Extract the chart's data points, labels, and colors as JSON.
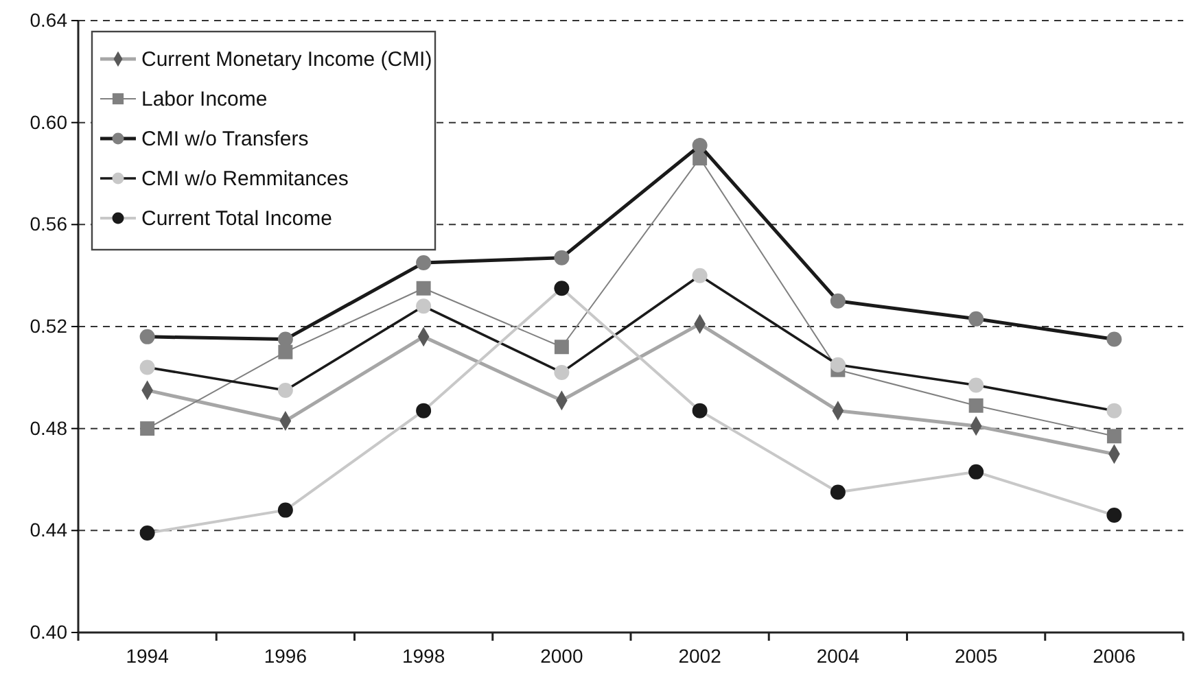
{
  "chart_data": {
    "type": "line",
    "categories": [
      "1994",
      "1996",
      "1998",
      "2000",
      "2002",
      "2004",
      "2005",
      "2006"
    ],
    "series": [
      {
        "name": "Current Monetary Income (CMI)",
        "color": "#a6a6a6",
        "colors": [
          "#595959",
          "#595959",
          "#595959",
          "#595959",
          "#595959",
          "#595959",
          "#595959",
          "#595959"
        ],
        "marker": "diamond",
        "values": [
          0.495,
          0.483,
          0.516,
          0.491,
          0.521,
          0.487,
          0.481,
          0.47
        ]
      },
      {
        "name": "Labor Income",
        "color": "#808080",
        "colors": [
          "#808080",
          "#808080",
          "#808080",
          "#808080",
          "#808080",
          "#808080",
          "#808080",
          "#808080"
        ],
        "marker": "square",
        "values": [
          0.48,
          0.51,
          0.535,
          0.512,
          0.586,
          0.503,
          0.489,
          0.477
        ]
      },
      {
        "name": "CMI w/o Transfers",
        "color": "#1a1a1a",
        "colors": [
          "#808080",
          "#808080",
          "#808080",
          "#808080",
          "#808080",
          "#808080",
          "#808080",
          "#808080"
        ],
        "marker": "circle",
        "values": [
          0.516,
          0.515,
          0.545,
          0.547,
          0.591,
          0.53,
          0.523,
          0.515
        ]
      },
      {
        "name": "CMI w/o Remmitances",
        "color": "#1a1a1a",
        "colors": [
          "#c8c8c8",
          "#c8c8c8",
          "#c8c8c8",
          "#c8c8c8",
          "#c8c8c8",
          "#c8c8c8",
          "#c8c8c8",
          "#c8c8c8"
        ],
        "marker": "circle",
        "values": [
          0.504,
          0.495,
          0.528,
          0.502,
          0.54,
          0.505,
          0.497,
          0.487
        ]
      },
      {
        "name": "Current Total Income",
        "color": "#c8c8c8",
        "colors": [
          "#1a1a1a",
          "#1a1a1a",
          "#1a1a1a",
          "#1a1a1a",
          "#1a1a1a",
          "#1a1a1a",
          "#1a1a1a",
          "#1a1a1a"
        ],
        "marker": "circle",
        "values": [
          0.439,
          0.448,
          0.487,
          0.535,
          0.487,
          0.455,
          0.463,
          0.446
        ]
      }
    ],
    "ylim": [
      0.4,
      0.64
    ],
    "yticks": [
      {
        "value": 0.4,
        "label": "0.40"
      },
      {
        "value": 0.44,
        "label": "0.44"
      },
      {
        "value": 0.48,
        "label": "0.48"
      },
      {
        "value": 0.52,
        "label": "0.52"
      },
      {
        "value": 0.56,
        "label": "0.56"
      },
      {
        "value": 0.6,
        "label": "0.60"
      },
      {
        "value": 0.64,
        "label": "0.64"
      }
    ],
    "grid": "y",
    "legend": "top left"
  }
}
